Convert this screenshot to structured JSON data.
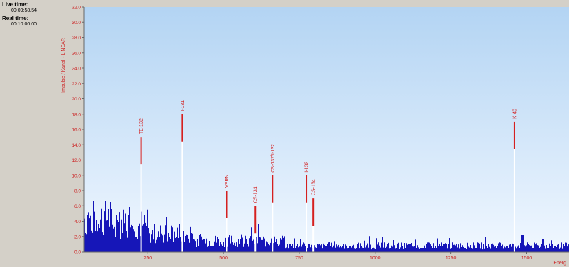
{
  "status": {
    "live_time_label": "Live time:",
    "live_time_value": "00:09:58.54",
    "real_time_label": "Real time:",
    "real_time_value": "00:10:00.00"
  },
  "chart_data": {
    "type": "bar",
    "ylabel": "Impulse / Kanal - LINEAR",
    "xlabel": "Energ",
    "xlim": [
      40,
      1640
    ],
    "ylim": [
      0,
      32
    ],
    "x_ticks": [
      250,
      500,
      750,
      1000,
      1250,
      1500
    ],
    "x_tick_labels": [
      "250",
      "500",
      "750",
      "1000",
      "1250",
      "1500"
    ],
    "y_ticks": [
      0,
      2,
      4,
      6,
      8,
      10,
      12,
      14,
      16,
      18,
      20,
      22,
      24,
      26,
      28,
      30,
      32
    ],
    "y_tick_labels": [
      "0.0",
      "2.0",
      "4.0",
      "6.0",
      "8.0",
      "10.0",
      "12.0",
      "14.0",
      "16.0",
      "18.0",
      "20.0",
      "22.0",
      "24.0",
      "26.0",
      "28.0",
      "30.0",
      "32.0"
    ],
    "peaks": [
      {
        "label": "TE-132",
        "x": 228,
        "y": 15
      },
      {
        "label": "I-131",
        "x": 364,
        "y": 18
      },
      {
        "label": "VERN",
        "x": 510,
        "y": 8
      },
      {
        "label": "CS-134",
        "x": 605,
        "y": 6
      },
      {
        "label": "CS-137/I-132",
        "x": 662,
        "y": 10
      },
      {
        "label": "I-132",
        "x": 773,
        "y": 10
      },
      {
        "label": "CS-134",
        "x": 796,
        "y": 7
      },
      {
        "label": "K-40",
        "x": 1460,
        "y": 17
      }
    ],
    "colors": {
      "background_top": "#b3d4f3",
      "background_bottom": "#f0f7ff",
      "spectrum": "#1616b8",
      "peak": "#ffffff",
      "annotation": "#d42020",
      "axis_text": "#cc2222"
    }
  }
}
